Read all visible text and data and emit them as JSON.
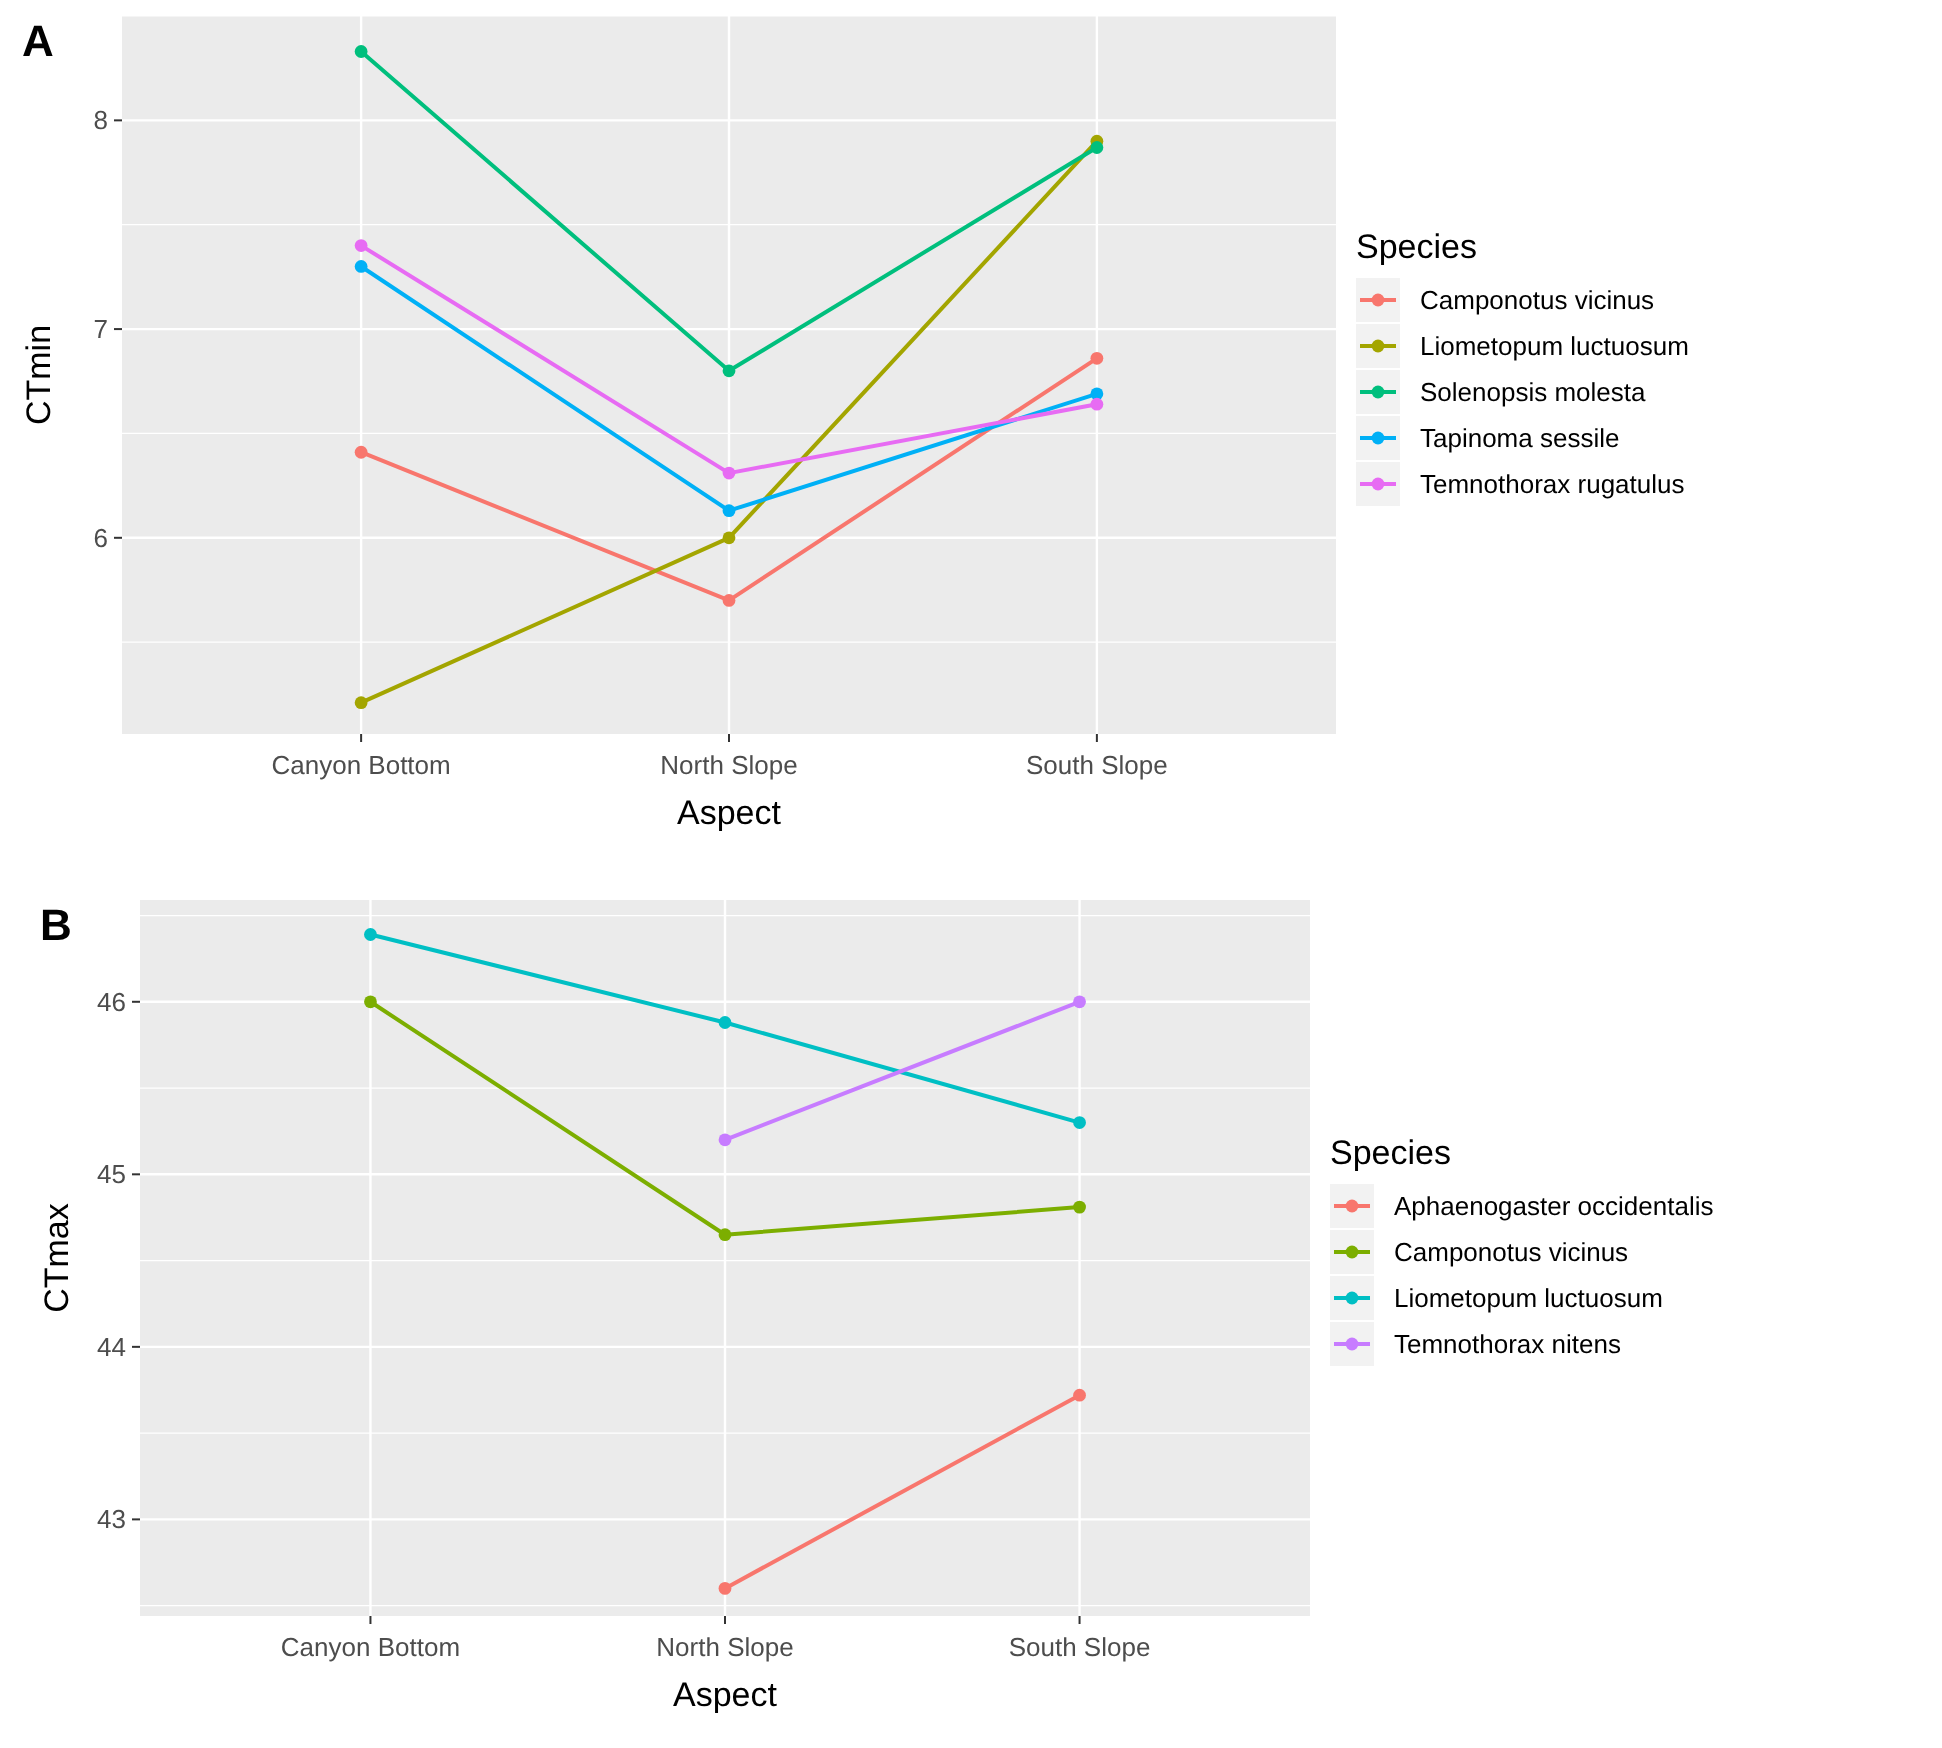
{
  "chart_data": [
    {
      "type": "line",
      "title": "A",
      "xlabel": "Aspect",
      "ylabel": "CTmin",
      "legend_title": "Species",
      "categories": [
        "Canyon Bottom",
        "North Slope",
        "South Slope"
      ],
      "ylim": [
        5.06,
        8.5
      ],
      "yticks": [
        6,
        7,
        8
      ],
      "grid": true,
      "legend": "right",
      "marker": "circle",
      "series": [
        {
          "name": "Camponotus vicinus",
          "color": "#f8766d",
          "values": [
            6.41,
            5.7,
            6.86
          ]
        },
        {
          "name": "Liometopum luctuosum",
          "color": "#a3a500",
          "values": [
            5.21,
            6.0,
            7.9
          ]
        },
        {
          "name": "Solenopsis molesta",
          "color": "#00bf7d",
          "values": [
            8.33,
            6.8,
            7.87
          ]
        },
        {
          "name": "Tapinoma sessile",
          "color": "#00b0f6",
          "values": [
            7.3,
            6.13,
            6.69
          ]
        },
        {
          "name": "Temnothorax rugatulus",
          "color": "#e76bf3",
          "values": [
            7.4,
            6.31,
            6.64
          ]
        }
      ]
    },
    {
      "type": "line",
      "title": "B",
      "xlabel": "Aspect",
      "ylabel": "CTmax",
      "legend_title": "Species",
      "categories": [
        "Canyon Bottom",
        "North Slope",
        "South Slope"
      ],
      "ylim": [
        42.44,
        46.59
      ],
      "yticks": [
        43,
        44,
        45,
        46
      ],
      "grid": true,
      "legend": "right",
      "marker": "circle",
      "series": [
        {
          "name": "Aphaenogaster occidentalis",
          "color": "#f8766d",
          "values": [
            null,
            42.6,
            43.72
          ]
        },
        {
          "name": "Camponotus vicinus",
          "color": "#7cae00",
          "values": [
            46.0,
            44.65,
            44.81
          ]
        },
        {
          "name": "Liometopum luctuosum",
          "color": "#00bfc4",
          "values": [
            46.39,
            45.88,
            45.3
          ]
        },
        {
          "name": "Temnothorax nitens",
          "color": "#c77cff",
          "values": [
            null,
            45.2,
            46.0
          ]
        }
      ]
    }
  ]
}
